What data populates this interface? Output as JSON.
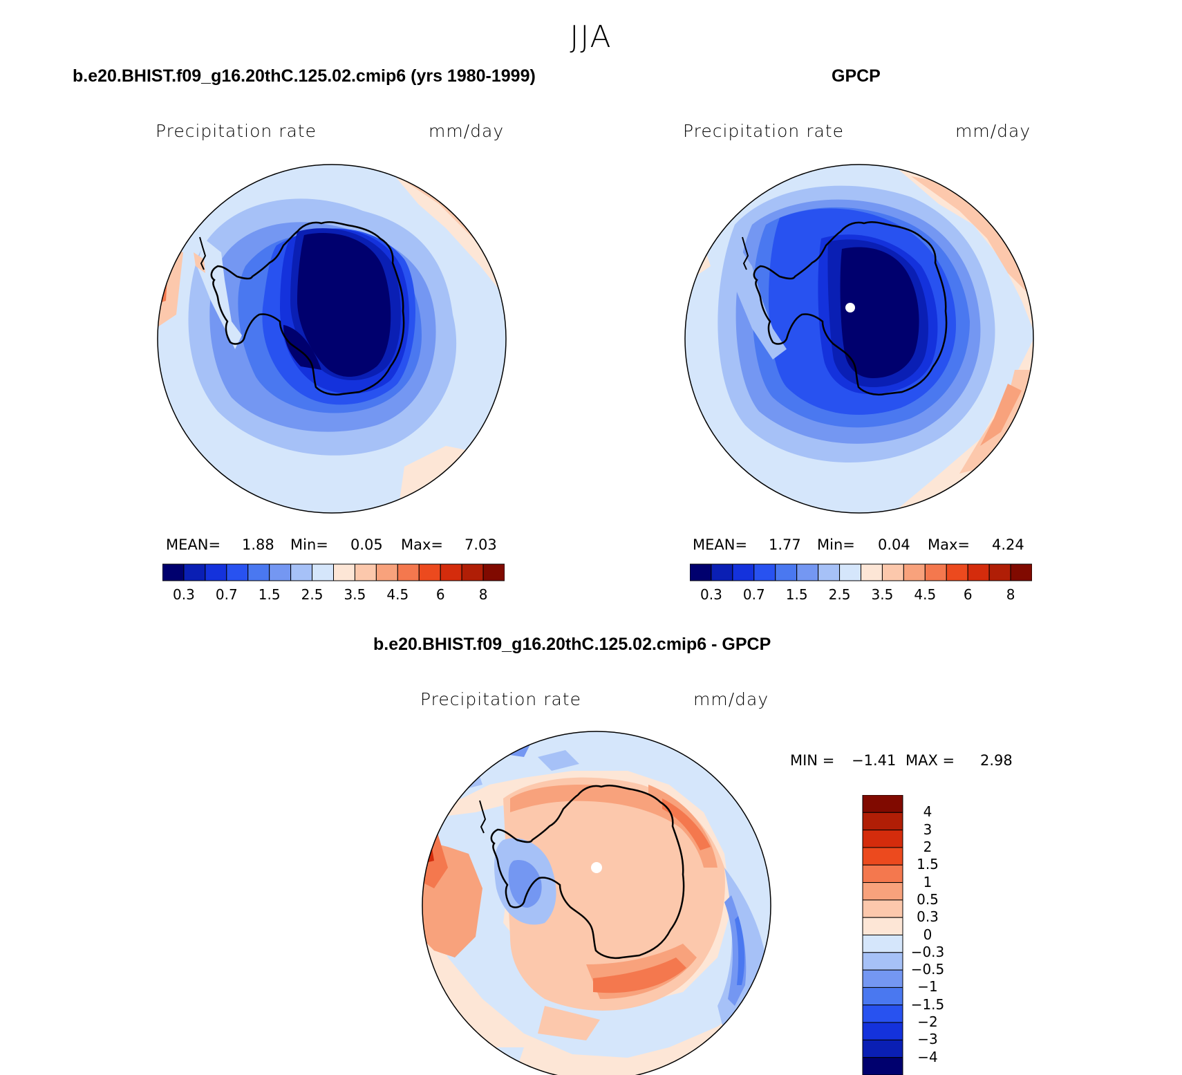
{
  "figure_title": "JJA",
  "panels": [
    {
      "title": "b.e20.BHIST.f09_g16.20thC.125.02.cmip6 (yrs 1980-1999)",
      "variable": "Precipitation rate",
      "units": "mm/day",
      "stats": {
        "mean_label": "MEAN=",
        "mean": "1.88",
        "min_label": "Min=",
        "min": "0.05",
        "max_label": "Max=",
        "max": "7.03"
      },
      "colorbar_ticks": [
        "0.3",
        "0.7",
        "1.5",
        "2.5",
        "3.5",
        "4.5",
        "6",
        "8"
      ],
      "interior_color": "#00006e"
    },
    {
      "title": "GPCP",
      "variable": "Precipitation rate",
      "units": "mm/day",
      "stats": {
        "mean_label": "MEAN=",
        "mean": "1.77",
        "min_label": "Min=",
        "min": "0.04",
        "max_label": "Max=",
        "max": "4.24"
      },
      "colorbar_ticks": [
        "0.3",
        "0.7",
        "1.5",
        "2.5",
        "3.5",
        "4.5",
        "6",
        "8"
      ],
      "interior_color": "#00007c"
    },
    {
      "title": "b.e20.BHIST.f09_g16.20thC.125.02.cmip6 - GPCP",
      "variable": "Precipitation rate",
      "units": "mm/day",
      "stats": {
        "min_label": "MIN =",
        "min": "−1.41",
        "max_label": "MAX =",
        "max": "2.98"
      },
      "colorbar_ticks": [
        "4",
        "3",
        "2",
        "1.5",
        "1",
        "0.5",
        "0.3",
        "0",
        "−0.3",
        "−0.5",
        "−1",
        "−1.5",
        "−2",
        "−3",
        "−4"
      ]
    }
  ],
  "palette_abs": [
    "#00006e",
    "#0a1fb4",
    "#1432dc",
    "#2852f0",
    "#4a78f0",
    "#7497f2",
    "#a6c1f7",
    "#d5e6fb",
    "#fde6d6",
    "#fcc8ac",
    "#f8a27c",
    "#f4784e",
    "#ec4a1e",
    "#d42c0c",
    "#b01e06",
    "#800a00"
  ],
  "palette_diff": [
    "#800a00",
    "#b01e06",
    "#d42c0c",
    "#ec4a1e",
    "#f4784e",
    "#f8a27c",
    "#fcc8ac",
    "#fde6d6",
    "#d5e6fb",
    "#a6c1f7",
    "#7497f2",
    "#4a78f0",
    "#2852f0",
    "#1432dc",
    "#0a1fb4",
    "#00006e"
  ]
}
